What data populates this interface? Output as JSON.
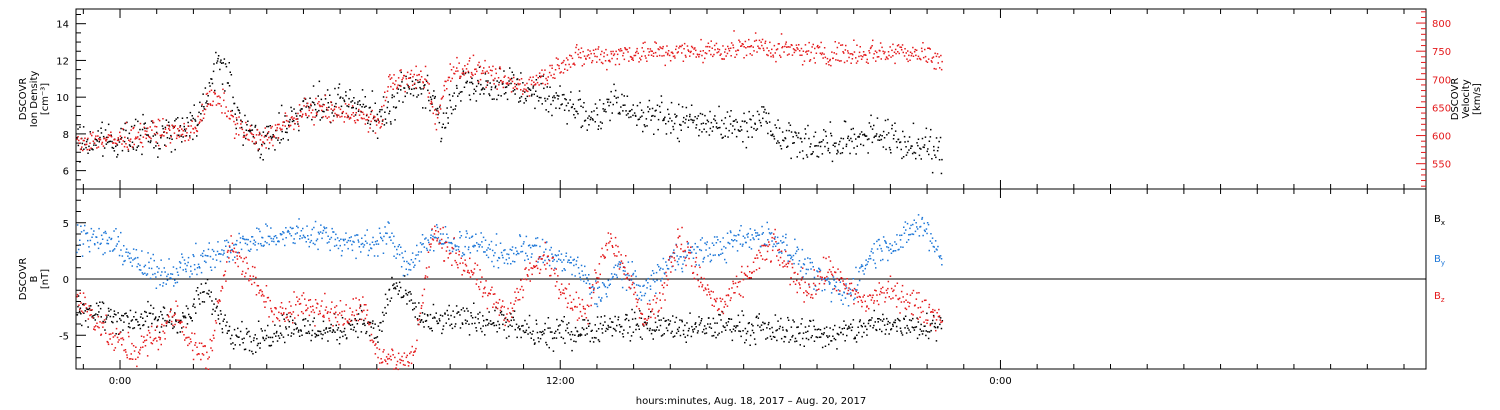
{
  "figure": {
    "xlabel": "hours:minutes, Aug. 18, 2017 – Aug. 20, 2017",
    "x_ticks": [
      {
        "hour": 0,
        "label": "0:00"
      },
      {
        "hour": 12,
        "label": "12:00"
      },
      {
        "hour": 24,
        "label": "0:00"
      }
    ],
    "x_range_hours": [
      -1.2,
      35.6
    ],
    "data_end_hour": 22.4,
    "colors": {
      "black": "#000000",
      "red": "#e41a1c",
      "blue": "#1f78d8"
    }
  },
  "chart_data": [
    {
      "type": "scatter",
      "panel": "top",
      "ylabel_left": [
        "DSCOVR",
        "Ion Density",
        "[cm⁻³]"
      ],
      "ylabel_right": [
        "DSCOVR",
        "Velocity",
        "[km/s]"
      ],
      "ylim": [
        5,
        14.8
      ],
      "y2lim": [
        505,
        825
      ],
      "yticks": [
        6,
        8,
        10,
        12,
        14
      ],
      "y2ticks": [
        550,
        600,
        650,
        700,
        750,
        800
      ],
      "series": [
        {
          "axis": "left",
          "color": "#000000",
          "profile": [
            [
              -1.2,
              7.5
            ],
            [
              0,
              7.8
            ],
            [
              1,
              8.1
            ],
            [
              1.5,
              8.2
            ],
            [
              2,
              8.6
            ],
            [
              2.4,
              10.5
            ],
            [
              2.7,
              12.1
            ],
            [
              3,
              10.6
            ],
            [
              3.3,
              8.2
            ],
            [
              4,
              7.6
            ],
            [
              4.6,
              8.7
            ],
            [
              5,
              9.5
            ],
            [
              5.8,
              9.6
            ],
            [
              6.3,
              9.7
            ],
            [
              7,
              9.0
            ],
            [
              7.3,
              9.2
            ],
            [
              7.6,
              10.6
            ],
            [
              8.3,
              10.5
            ],
            [
              8.8,
              8.5
            ],
            [
              9.3,
              11.0
            ],
            [
              10,
              10.6
            ],
            [
              11,
              10.5
            ],
            [
              12,
              9.9
            ],
            [
              13,
              8.8
            ],
            [
              13.5,
              9.8
            ],
            [
              14,
              9.3
            ],
            [
              15,
              8.8
            ],
            [
              16,
              8.7
            ],
            [
              17,
              8.4
            ],
            [
              17.5,
              9.1
            ],
            [
              18,
              8.0
            ],
            [
              18.6,
              7.6
            ],
            [
              19.5,
              7.4
            ],
            [
              20.5,
              8.2
            ],
            [
              21.5,
              7.4
            ],
            [
              22.4,
              7.0
            ]
          ]
        },
        {
          "axis": "right",
          "color": "#e41a1c",
          "profile": [
            [
              -1.2,
              592
            ],
            [
              0,
              595
            ],
            [
              1,
              610
            ],
            [
              1.5,
              605
            ],
            [
              2,
              610
            ],
            [
              2.4,
              665
            ],
            [
              2.8,
              660
            ],
            [
              3.2,
              615
            ],
            [
              3.8,
              592
            ],
            [
              4.6,
              625
            ],
            [
              5.2,
              650
            ],
            [
              6,
              640
            ],
            [
              6.4,
              642
            ],
            [
              6.7,
              628
            ],
            [
              7.1,
              626
            ],
            [
              7.3,
              695
            ],
            [
              8,
              702
            ],
            [
              8.3,
              705
            ],
            [
              8.6,
              628
            ],
            [
              9,
              720
            ],
            [
              9.7,
              718
            ],
            [
              10.2,
              700
            ],
            [
              11,
              690
            ],
            [
              11.5,
              703
            ],
            [
              12,
              730
            ],
            [
              12.5,
              742
            ],
            [
              13.5,
              745
            ],
            [
              14,
              750
            ],
            [
              15,
              748
            ],
            [
              16,
              752
            ],
            [
              16.8,
              758
            ],
            [
              17.5,
              760
            ],
            [
              18,
              752
            ],
            [
              19,
              748
            ],
            [
              20,
              748
            ],
            [
              21,
              750
            ],
            [
              21.5,
              752
            ],
            [
              22.4,
              735
            ]
          ]
        }
      ]
    },
    {
      "type": "scatter",
      "panel": "bottom",
      "ylabel_left": [
        "DSCOVR",
        "B",
        "[nT]"
      ],
      "ylim": [
        -8,
        8
      ],
      "yticks": [
        -5,
        0,
        5
      ],
      "zero_line": true,
      "legend": [
        {
          "label": "B",
          "sub": "x",
          "color": "#000000"
        },
        {
          "label": "B",
          "sub": "y",
          "color": "#1f78d8"
        },
        {
          "label": "B",
          "sub": "z",
          "color": "#e41a1c"
        }
      ],
      "series": [
        {
          "name": "Bx",
          "color": "#000000",
          "profile": [
            [
              -1.2,
              -2.5
            ],
            [
              0,
              -3.5
            ],
            [
              1,
              -3.5
            ],
            [
              1.8,
              -3.5
            ],
            [
              2.3,
              -1.0
            ],
            [
              3,
              -4.5
            ],
            [
              3.7,
              -5.5
            ],
            [
              4.5,
              -4.0
            ],
            [
              5.2,
              -4.5
            ],
            [
              6,
              -4.5
            ],
            [
              6.5,
              -3.5
            ],
            [
              7,
              -5.0
            ],
            [
              7.4,
              -0.5
            ],
            [
              7.8,
              -1.5
            ],
            [
              8.3,
              -4.0
            ],
            [
              9,
              -3.5
            ],
            [
              10,
              -3.5
            ],
            [
              11,
              -4.5
            ],
            [
              11.5,
              -5.0
            ],
            [
              12.5,
              -4.5
            ],
            [
              13.5,
              -4.0
            ],
            [
              14.5,
              -4.0
            ],
            [
              15.5,
              -4.5
            ],
            [
              16.5,
              -4.0
            ],
            [
              17.5,
              -4.5
            ],
            [
              18.5,
              -4.5
            ],
            [
              19.5,
              -5.0
            ],
            [
              20.5,
              -4.0
            ],
            [
              21.5,
              -4.0
            ],
            [
              22.4,
              -4.0
            ]
          ]
        },
        {
          "name": "By",
          "color": "#1f78d8",
          "profile": [
            [
              -1.2,
              4.0
            ],
            [
              0,
              3.0
            ],
            [
              0.6,
              1.0
            ],
            [
              1.2,
              0.5
            ],
            [
              2,
              1.5
            ],
            [
              2.8,
              2.5
            ],
            [
              3.5,
              3.5
            ],
            [
              4.5,
              4.0
            ],
            [
              5.5,
              4.0
            ],
            [
              6.5,
              3.0
            ],
            [
              7.3,
              4.0
            ],
            [
              7.8,
              1.0
            ],
            [
              8.3,
              3.5
            ],
            [
              9,
              3.5
            ],
            [
              9.8,
              3.0
            ],
            [
              10.5,
              2.0
            ],
            [
              11,
              3.0
            ],
            [
              11.8,
              2.0
            ],
            [
              12.3,
              1.5
            ],
            [
              13,
              -1.5
            ],
            [
              13.6,
              1.0
            ],
            [
              14.3,
              -1.0
            ],
            [
              15,
              2.0
            ],
            [
              15.8,
              2.5
            ],
            [
              16.5,
              3.0
            ],
            [
              17.3,
              4.0
            ],
            [
              18,
              3.5
            ],
            [
              18.6,
              1.5
            ],
            [
              19.2,
              -0.5
            ],
            [
              19.8,
              -1.5
            ],
            [
              20.5,
              2.5
            ],
            [
              21.3,
              3.5
            ],
            [
              21.8,
              5.0
            ],
            [
              22.4,
              2.0
            ]
          ]
        },
        {
          "name": "Bz",
          "color": "#e41a1c",
          "profile": [
            [
              -1.2,
              -1.5
            ],
            [
              -0.3,
              -5.0
            ],
            [
              0.3,
              -6.5
            ],
            [
              1,
              -5.0
            ],
            [
              1.5,
              -3.0
            ],
            [
              2,
              -6.0
            ],
            [
              2.4,
              -7.0
            ],
            [
              3,
              3.5
            ],
            [
              3.3,
              1.5
            ],
            [
              3.7,
              -0.5
            ],
            [
              4.3,
              -3.5
            ],
            [
              4.8,
              -2.0
            ],
            [
              5.4,
              -2.5
            ],
            [
              6.1,
              -3.5
            ],
            [
              6.6,
              -2.0
            ],
            [
              7,
              -6.5
            ],
            [
              7.6,
              -7.5
            ],
            [
              8,
              -6.5
            ],
            [
              8.5,
              4.0
            ],
            [
              9,
              2.5
            ],
            [
              9.5,
              1.0
            ],
            [
              10,
              -1.5
            ],
            [
              10.6,
              -3.0
            ],
            [
              11.1,
              0.5
            ],
            [
              11.6,
              2.0
            ],
            [
              12.2,
              -1.5
            ],
            [
              12.7,
              -3.0
            ],
            [
              13.3,
              4.0
            ],
            [
              13.8,
              1.0
            ],
            [
              14.2,
              -3.5
            ],
            [
              14.7,
              -2.0
            ],
            [
              15.2,
              4.0
            ],
            [
              15.8,
              0.0
            ],
            [
              16.3,
              -2.5
            ],
            [
              16.8,
              -1.0
            ],
            [
              17.3,
              1.5
            ],
            [
              17.8,
              3.0
            ],
            [
              18.3,
              0.5
            ],
            [
              18.8,
              -1.0
            ],
            [
              19.3,
              1.0
            ],
            [
              19.8,
              -1.0
            ],
            [
              20.3,
              -2.0
            ],
            [
              20.8,
              -1.0
            ],
            [
              21.3,
              -1.5
            ],
            [
              21.8,
              -2.5
            ],
            [
              22.4,
              -3.5
            ]
          ]
        }
      ]
    }
  ]
}
